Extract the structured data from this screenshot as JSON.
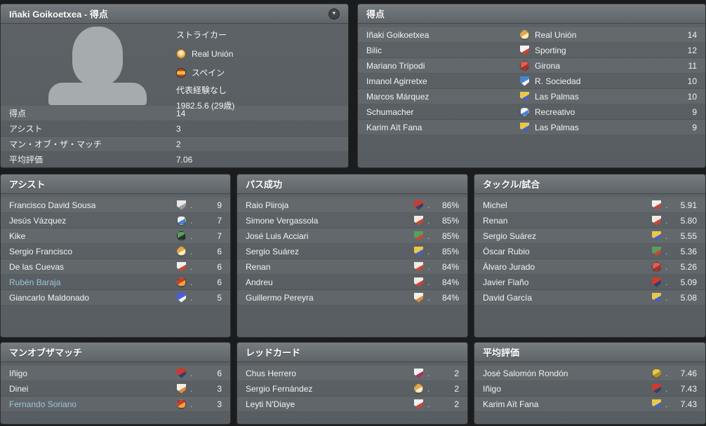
{
  "ui": {
    "dropdown_icon": "▼",
    "leader_dot": ".",
    "highlight_color": "#9ec4d8",
    "panel_color": "#5c6266",
    "background_color": "#1a1c1e"
  },
  "profile_panel": {
    "title": "Iñaki Goikoetxea - 得点",
    "position": "ストライカー",
    "club": "Real Unión",
    "nation": "スペイン",
    "caps": "代表経験なし",
    "birth": "1982.5.6 (29歳)",
    "stats": [
      {
        "label": "得点",
        "value": "14"
      },
      {
        "label": "アシスト",
        "value": "3"
      },
      {
        "label": "マン・オブ・ザ・マッチ",
        "value": "2"
      },
      {
        "label": "平均評価",
        "value": "7.06"
      }
    ]
  },
  "panels": [
    {
      "title": "得点",
      "with_club": true,
      "rows": [
        {
          "name": "Iñaki Goikoetxea",
          "club": "Real Unión",
          "value": "14",
          "badge_shape": "circle",
          "badge_colors": [
            "#e9a83e",
            "#f7edd2"
          ]
        },
        {
          "name": "Bilic",
          "club": "Sporting",
          "value": "12",
          "badge_shape": "shield",
          "badge_colors": [
            "#f2f2f2",
            "#cc4434"
          ]
        },
        {
          "name": "Mariano Trípodi",
          "club": "Girona",
          "value": "11",
          "badge_shape": "circle",
          "badge_colors": [
            "#d96258",
            "#b03028"
          ]
        },
        {
          "name": "Imanol Agirretxe",
          "club": "R. Sociedad",
          "value": "10",
          "badge_shape": "shield",
          "badge_colors": [
            "#4a86cc",
            "#f2f2f2"
          ]
        },
        {
          "name": "Marcos Márquez",
          "club": "Las Palmas",
          "value": "10",
          "badge_shape": "shield",
          "badge_colors": [
            "#e9c94a",
            "#4a5fc0"
          ]
        },
        {
          "name": "Schumacher",
          "club": "Recreativo",
          "value": "9",
          "badge_shape": "circle",
          "badge_colors": [
            "#f2f2f2",
            "#4a86cc"
          ]
        },
        {
          "name": "Karim Aït Fana",
          "club": "Las Palmas",
          "value": "9",
          "badge_shape": "shield",
          "badge_colors": [
            "#e9c94a",
            "#4a5fc0"
          ]
        }
      ]
    },
    {
      "title": "アシスト",
      "with_club": false,
      "rows": [
        {
          "name": "Francisco David Sousa",
          "value": "9",
          "badge_shape": "shield",
          "badge_colors": [
            "#e8e8e8",
            "#9a9a9a"
          ]
        },
        {
          "name": "Jesús Vázquez",
          "value": "7",
          "badge_shape": "circle",
          "badge_colors": [
            "#f2f2f2",
            "#4a86cc"
          ]
        },
        {
          "name": "Kike",
          "value": "7",
          "badge_shape": "circle",
          "badge_colors": [
            "#57a05a",
            "#2d2d2d"
          ]
        },
        {
          "name": "Sergio Francisco",
          "value": "6",
          "badge_shape": "circle",
          "badge_colors": [
            "#e9a83e",
            "#f7edd2"
          ]
        },
        {
          "name": "De las Cuevas",
          "value": "6",
          "badge_shape": "shield",
          "badge_colors": [
            "#f2f2f2",
            "#cc4434"
          ]
        },
        {
          "name": "Rubén Baraja",
          "value": "6",
          "badge_shape": "circle",
          "badge_colors": [
            "#cc3b30",
            "#e9a83e"
          ],
          "highlight": true
        },
        {
          "name": "Giancarlo Maldonado",
          "value": "5",
          "badge_shape": "shield",
          "badge_colors": [
            "#4a5fd9",
            "#f2f2f2"
          ]
        }
      ]
    },
    {
      "title": "パス成功",
      "with_club": false,
      "rows": [
        {
          "name": "Raio Piiroja",
          "value": "86%",
          "badge_shape": "shield",
          "badge_colors": [
            "#cc3b30",
            "#33406e"
          ]
        },
        {
          "name": "Simone Vergassola",
          "value": "85%",
          "badge_shape": "shield",
          "badge_colors": [
            "#f2ece0",
            "#cc4434"
          ]
        },
        {
          "name": "José Luis Acciari",
          "value": "85%",
          "badge_shape": "shield",
          "badge_colors": [
            "#57a05a",
            "#cc4434"
          ]
        },
        {
          "name": "Sergio Suárez",
          "value": "85%",
          "badge_shape": "shield",
          "badge_colors": [
            "#e9c94a",
            "#4a5fc0"
          ]
        },
        {
          "name": "Renan",
          "value": "84%",
          "badge_shape": "shield",
          "badge_colors": [
            "#f2ece0",
            "#cc4434"
          ]
        },
        {
          "name": "Andreu",
          "value": "84%",
          "badge_shape": "shield",
          "badge_colors": [
            "#f2ece0",
            "#cc4434"
          ]
        },
        {
          "name": "Guillermo Pereyra",
          "value": "84%",
          "badge_shape": "shield",
          "badge_colors": [
            "#f5f0e6",
            "#e08a3c"
          ]
        }
      ]
    },
    {
      "title": "タックル/試合",
      "with_club": false,
      "rows": [
        {
          "name": "Michel",
          "value": "5.91",
          "badge_shape": "shield",
          "badge_colors": [
            "#f2f2f2",
            "#cc4434"
          ]
        },
        {
          "name": "Renan",
          "value": "5.80",
          "badge_shape": "shield",
          "badge_colors": [
            "#f2ece0",
            "#cc4434"
          ]
        },
        {
          "name": "Sergio Suárez",
          "value": "5.55",
          "badge_shape": "shield",
          "badge_colors": [
            "#e9c94a",
            "#4a5fc0"
          ]
        },
        {
          "name": "Óscar Rubio",
          "value": "5.36",
          "badge_shape": "shield",
          "badge_colors": [
            "#57a05a",
            "#cc4434"
          ]
        },
        {
          "name": "Álvaro Jurado",
          "value": "5.26",
          "badge_shape": "circle",
          "badge_colors": [
            "#d96258",
            "#b03028"
          ]
        },
        {
          "name": "Javier Flaño",
          "value": "5.09",
          "badge_shape": "shield",
          "badge_colors": [
            "#cc3b30",
            "#33406e"
          ]
        },
        {
          "name": "David García",
          "value": "5.08",
          "badge_shape": "shield",
          "badge_colors": [
            "#e9c94a",
            "#4a5fc0"
          ]
        }
      ]
    },
    {
      "title": "マンオブザマッチ",
      "with_club": false,
      "rows": [
        {
          "name": "Iñigo",
          "value": "6",
          "badge_shape": "shield",
          "badge_colors": [
            "#cc3b30",
            "#33406e"
          ]
        },
        {
          "name": "Dinei",
          "value": "3",
          "badge_shape": "shield",
          "badge_colors": [
            "#f5f0e6",
            "#e08a3c"
          ]
        },
        {
          "name": "Fernando Soriano",
          "value": "3",
          "badge_shape": "circle",
          "badge_colors": [
            "#cc3b30",
            "#e9a83e"
          ],
          "highlight": true
        }
      ]
    },
    {
      "title": "レッドカード",
      "with_club": false,
      "rows": [
        {
          "name": "Chus Herrero",
          "value": "2",
          "badge_shape": "shield",
          "badge_colors": [
            "#f2f2f2",
            "#b03050"
          ]
        },
        {
          "name": "Sergio Fernández",
          "value": "2",
          "badge_shape": "circle",
          "badge_colors": [
            "#e9a83e",
            "#f7edd2"
          ]
        },
        {
          "name": "Leyti N'Diaye",
          "value": "2",
          "badge_shape": "shield",
          "badge_colors": [
            "#f2f2f2",
            "#cc4434"
          ]
        }
      ]
    },
    {
      "title": "平均評価",
      "with_club": false,
      "rows": [
        {
          "name": "José Salomón Rondón",
          "value": "7.46",
          "badge_shape": "circle",
          "badge_colors": [
            "#e9c94a",
            "#b08f2f"
          ]
        },
        {
          "name": "Iñigo",
          "value": "7.43",
          "badge_shape": "shield",
          "badge_colors": [
            "#cc3b30",
            "#33406e"
          ]
        },
        {
          "name": "Karim Aït Fana",
          "value": "7.43",
          "badge_shape": "shield",
          "badge_colors": [
            "#e9c94a",
            "#4a5fc0"
          ]
        }
      ]
    }
  ]
}
